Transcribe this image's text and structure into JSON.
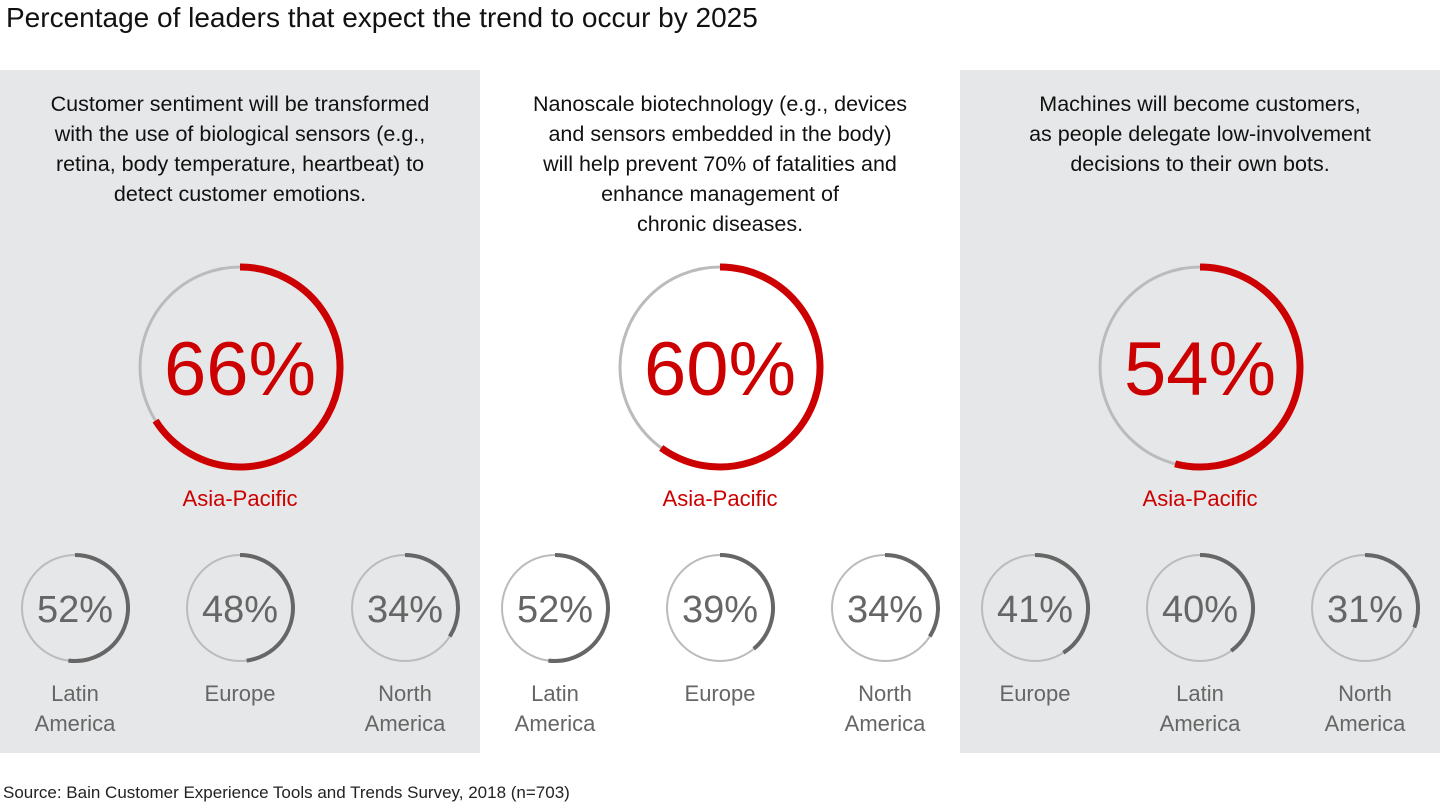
{
  "title": "Percentage of leaders that expect the trend to occur by 2025",
  "source": "Source: Bain Customer Experience Tools and Trends Survey, 2018 (n=703)",
  "colors": {
    "accent": "#cc0000",
    "secondary": "#666666",
    "track": "#bbbbbc",
    "panel_grey": "#e6e7e8"
  },
  "chart_data": [
    {
      "type": "donut",
      "description": [
        "Customer sentiment will be transformed",
        "with the use of biological sensors (e.g.,",
        "retina, body temperature, heartbeat) to",
        "detect customer emotions."
      ],
      "main": {
        "region": "Asia-Pacific",
        "value": 66,
        "label": "66%"
      },
      "regions": [
        {
          "region": [
            "Latin",
            "America"
          ],
          "value": 52,
          "label": "52%"
        },
        {
          "region": [
            "Europe"
          ],
          "value": 48,
          "label": "48%"
        },
        {
          "region": [
            "North",
            "America"
          ],
          "value": 34,
          "label": "34%"
        }
      ]
    },
    {
      "type": "donut",
      "description": [
        "Nanoscale biotechnology (e.g., devices",
        "and sensors embedded in the body)",
        "will help prevent 70% of fatalities and",
        "enhance management of",
        "chronic diseases."
      ],
      "main": {
        "region": "Asia-Pacific",
        "value": 60,
        "label": "60%"
      },
      "regions": [
        {
          "region": [
            "Latin",
            "America"
          ],
          "value": 52,
          "label": "52%"
        },
        {
          "region": [
            "Europe"
          ],
          "value": 39,
          "label": "39%"
        },
        {
          "region": [
            "North",
            "America"
          ],
          "value": 34,
          "label": "34%"
        }
      ]
    },
    {
      "type": "donut",
      "description": [
        "Machines will become customers,",
        "as people delegate low-involvement",
        "decisions to their own bots."
      ],
      "main": {
        "region": "Asia-Pacific",
        "value": 54,
        "label": "54%"
      },
      "regions": [
        {
          "region": [
            "Europe"
          ],
          "value": 41,
          "label": "41%"
        },
        {
          "region": [
            "Latin",
            "America"
          ],
          "value": 40,
          "label": "40%"
        },
        {
          "region": [
            "North",
            "America"
          ],
          "value": 31,
          "label": "31%"
        }
      ]
    }
  ]
}
